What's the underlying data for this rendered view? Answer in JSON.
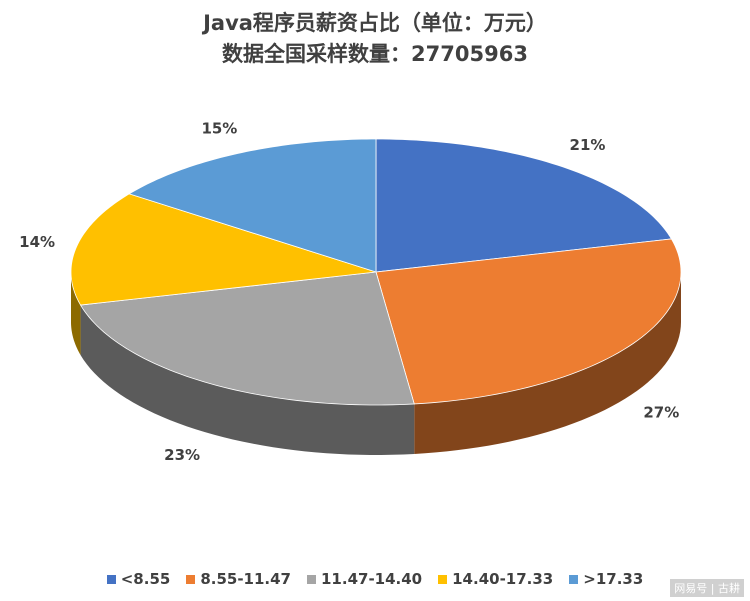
{
  "chart_data": {
    "type": "pie",
    "title": "Java程序员薪资占比（单位：万元）",
    "subtitle": "数据全国采样数量：27705963",
    "categories": [
      "<8.55",
      "8.55-11.47",
      "11.47-14.40",
      "14.40-17.33",
      ">17.33"
    ],
    "values": [
      21,
      27,
      23,
      14,
      15
    ],
    "value_labels": [
      "21%",
      "27%",
      "23%",
      "14%",
      "15%"
    ],
    "colors": [
      "#4472C4",
      "#ED7D31",
      "#A5A5A5",
      "#FFC000",
      "#5B9BD5"
    ],
    "style": "3d",
    "legend_position": "bottom"
  },
  "watermark": "网易号 | 古耕"
}
